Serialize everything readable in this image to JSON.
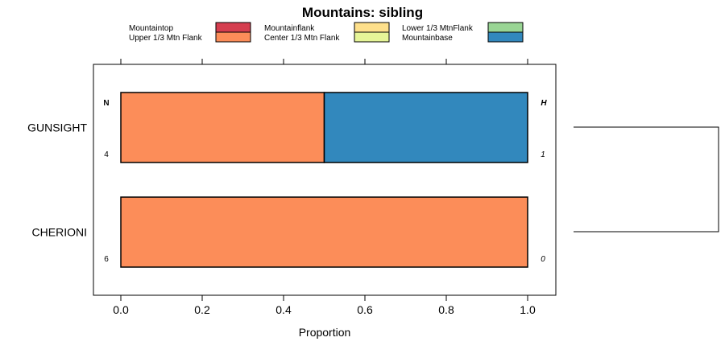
{
  "chart_data": {
    "type": "bar",
    "orientation": "horizontal",
    "stacked": true,
    "title": "Mountains: sibling",
    "xlabel": "Proportion",
    "ylabel": "",
    "xlim": [
      0,
      1
    ],
    "x_ticks": [
      "0.0",
      "0.2",
      "0.4",
      "0.6",
      "0.8",
      "1.0"
    ],
    "x_tick_values": [
      0,
      0.2,
      0.4,
      0.6,
      0.8,
      1.0
    ],
    "categories": [
      "GUNSIGHT",
      "CHERIONI"
    ],
    "legend": [
      {
        "name": "Mountaintop",
        "color": "#d53e4f"
      },
      {
        "name": "Upper 1/3 Mtn Flank",
        "color": "#fc8d59"
      },
      {
        "name": "Mountainflank",
        "color": "#fee08b"
      },
      {
        "name": "Center 1/3 Mtn Flank",
        "color": "#e6f598"
      },
      {
        "name": "Lower 1/3 MtnFlank",
        "color": "#99d594"
      },
      {
        "name": "Mountainbase",
        "color": "#3288bd"
      }
    ],
    "series": [
      {
        "name": "Mountaintop",
        "values": [
          0,
          0
        ]
      },
      {
        "name": "Upper 1/3 Mtn Flank",
        "values": [
          0.5,
          1.0
        ]
      },
      {
        "name": "Mountainflank",
        "values": [
          0,
          0
        ]
      },
      {
        "name": "Center 1/3 Mtn Flank",
        "values": [
          0,
          0
        ]
      },
      {
        "name": "Lower 1/3 MtnFlank",
        "values": [
          0,
          0
        ]
      },
      {
        "name": "Mountainbase",
        "values": [
          0.5,
          0
        ]
      }
    ],
    "n_header": "N",
    "h_header": "H",
    "n_values": [
      "4",
      "6"
    ],
    "h_values": [
      "1",
      "0"
    ],
    "legend_placement": "top",
    "dendrogram": true
  }
}
